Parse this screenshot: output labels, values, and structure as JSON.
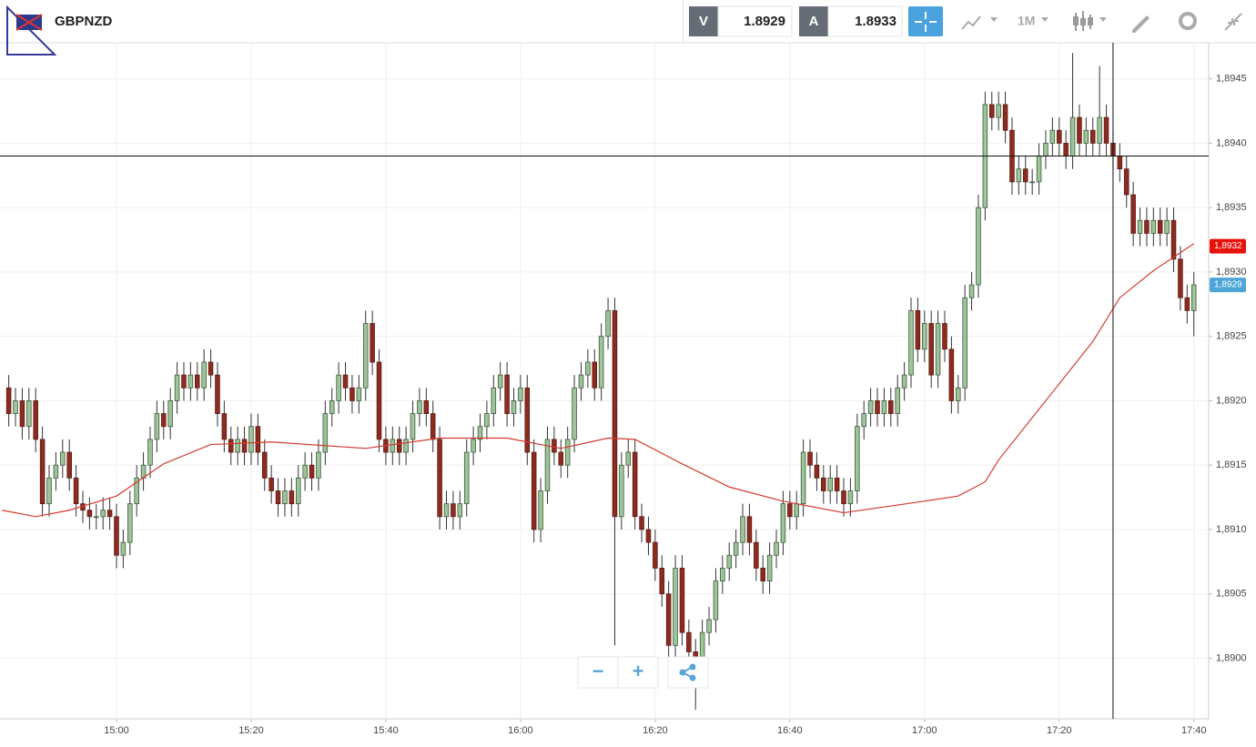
{
  "toolbar": {
    "symbol": "GBPNZD",
    "bid_label": "V",
    "bid": "1.8929",
    "ask_label": "A",
    "ask": "1.8933",
    "timeframe": "1M"
  },
  "controls": {
    "zoom_out": "−",
    "zoom_in": "+"
  },
  "chart_data": {
    "type": "candlestick",
    "x": [
      884,
      885,
      886,
      887,
      888,
      889,
      890,
      891,
      892,
      893,
      894,
      895,
      896,
      897,
      898,
      899,
      900,
      901,
      902,
      903,
      904,
      905,
      906,
      907,
      908,
      909,
      910,
      911,
      912,
      913,
      914,
      915,
      916,
      917,
      918,
      919,
      920,
      921,
      922,
      923,
      924,
      925,
      926,
      927,
      928,
      929,
      930,
      931,
      932,
      933,
      934,
      935,
      936,
      937,
      938,
      939,
      940,
      941,
      942,
      943,
      944,
      945,
      946,
      947,
      948,
      949,
      950,
      951,
      952,
      953,
      954,
      955,
      956,
      957,
      958,
      959,
      960,
      961,
      962,
      963,
      964,
      965,
      966,
      967,
      968,
      969,
      970,
      971,
      972,
      973,
      974,
      975,
      976,
      977,
      978,
      979,
      980,
      981,
      982,
      983,
      984,
      985,
      986,
      987,
      988,
      989,
      990,
      991,
      992,
      993,
      994,
      995,
      996,
      997,
      998,
      999,
      1000,
      1001,
      1002,
      1003,
      1004,
      1005,
      1006,
      1007,
      1008,
      1009,
      1010,
      1011,
      1012,
      1013,
      1014,
      1015,
      1016,
      1017,
      1018,
      1019,
      1020,
      1021,
      1022,
      1023,
      1024,
      1025,
      1026,
      1027,
      1028,
      1029,
      1030,
      1031,
      1032,
      1033,
      1034,
      1035,
      1036,
      1037,
      1038,
      1039,
      1040,
      1041,
      1042,
      1043,
      1044,
      1045,
      1046,
      1047,
      1048,
      1049,
      1050,
      1051,
      1052,
      1053,
      1054,
      1055,
      1056,
      1057,
      1058,
      1059,
      1060
    ],
    "open": [
      1.8921,
      1.8919,
      1.892,
      1.8918,
      1.892,
      1.8917,
      1.8912,
      1.8914,
      1.8915,
      1.8916,
      1.8914,
      1.8912,
      1.89115,
      1.8911,
      1.8911,
      1.89115,
      1.8911,
      1.8908,
      1.8909,
      1.8912,
      1.8914,
      1.8915,
      1.8917,
      1.8919,
      1.8918,
      1.892,
      1.8922,
      1.8921,
      1.8922,
      1.8921,
      1.8923,
      1.8922,
      1.8919,
      1.8917,
      1.8916,
      1.8917,
      1.8916,
      1.8918,
      1.8916,
      1.8914,
      1.8913,
      1.8912,
      1.8913,
      1.8912,
      1.8914,
      1.8915,
      1.8914,
      1.8916,
      1.8919,
      1.892,
      1.8922,
      1.8921,
      1.892,
      1.8921,
      1.8926,
      1.8923,
      1.8917,
      1.8916,
      1.8917,
      1.8916,
      1.8917,
      1.8919,
      1.892,
      1.8919,
      1.8917,
      1.8911,
      1.8912,
      1.8911,
      1.8912,
      1.8916,
      1.8917,
      1.8918,
      1.8919,
      1.8921,
      1.8922,
      1.8919,
      1.892,
      1.8921,
      1.8916,
      1.891,
      1.8913,
      1.8917,
      1.8916,
      1.8915,
      1.8917,
      1.8921,
      1.8922,
      1.8923,
      1.8921,
      1.8925,
      1.8927,
      1.8911,
      1.8915,
      1.8916,
      1.8911,
      1.891,
      1.8909,
      1.8907,
      1.8905,
      1.8901,
      1.8907,
      1.8902,
      1.89005,
      1.89,
      1.8902,
      1.8903,
      1.8906,
      1.8907,
      1.8908,
      1.8909,
      1.8911,
      1.8909,
      1.8907,
      1.8906,
      1.8908,
      1.8909,
      1.8912,
      1.8911,
      1.8912,
      1.8916,
      1.8915,
      1.8914,
      1.8913,
      1.8914,
      1.8913,
      1.8912,
      1.8913,
      1.8918,
      1.8919,
      1.892,
      1.8919,
      1.892,
      1.8919,
      1.8921,
      1.8922,
      1.8927,
      1.8924,
      1.8926,
      1.8922,
      1.8926,
      1.8924,
      1.892,
      1.8921,
      1.8928,
      1.8929,
      1.8935,
      1.8943,
      1.8942,
      1.8943,
      1.8941,
      1.8937,
      1.8938,
      1.8937,
      1.8937,
      1.8939,
      1.894,
      1.8941,
      1.894,
      1.8939,
      1.8942,
      1.894,
      1.8941,
      1.894,
      1.8942,
      1.894,
      1.8939,
      1.8938,
      1.8936,
      1.8933,
      1.8934,
      1.8933,
      1.8934,
      1.8933,
      1.8934,
      1.8931,
      1.8928,
      1.8927
    ],
    "high": [
      1.8922,
      1.8921,
      1.8921,
      1.8921,
      1.8921,
      1.8918,
      1.8915,
      1.8916,
      1.8917,
      1.8917,
      1.8915,
      1.8913,
      1.89125,
      1.8912,
      1.89125,
      1.89125,
      1.8912,
      1.891,
      1.8913,
      1.8915,
      1.8916,
      1.8918,
      1.892,
      1.892,
      1.8921,
      1.8923,
      1.8923,
      1.8923,
      1.8923,
      1.8924,
      1.8924,
      1.8923,
      1.892,
      1.8918,
      1.8918,
      1.8918,
      1.8919,
      1.8919,
      1.8917,
      1.8915,
      1.8914,
      1.8914,
      1.8914,
      1.8915,
      1.8916,
      1.8916,
      1.8917,
      1.892,
      1.8921,
      1.8923,
      1.8923,
      1.8922,
      1.8922,
      1.8927,
      1.8927,
      1.8924,
      1.8918,
      1.8918,
      1.8918,
      1.8918,
      1.892,
      1.8921,
      1.8921,
      1.892,
      1.8918,
      1.8913,
      1.8913,
      1.8913,
      1.8917,
      1.8918,
      1.8919,
      1.892,
      1.8922,
      1.8923,
      1.8923,
      1.8921,
      1.8922,
      1.8922,
      1.8917,
      1.8914,
      1.8918,
      1.8918,
      1.8917,
      1.8918,
      1.8922,
      1.8923,
      1.8924,
      1.8924,
      1.8926,
      1.8928,
      1.8928,
      1.8916,
      1.8917,
      1.8917,
      1.8912,
      1.8911,
      1.891,
      1.8908,
      1.8906,
      1.8908,
      1.8908,
      1.8903,
      1.89015,
      1.8903,
      1.8904,
      1.8907,
      1.8908,
      1.8909,
      1.891,
      1.8912,
      1.8912,
      1.891,
      1.8908,
      1.8909,
      1.891,
      1.8913,
      1.8913,
      1.8913,
      1.8917,
      1.8917,
      1.8916,
      1.8915,
      1.8915,
      1.8915,
      1.8914,
      1.8914,
      1.8919,
      1.892,
      1.8921,
      1.8921,
      1.8921,
      1.8921,
      1.8922,
      1.8923,
      1.8928,
      1.8928,
      1.8927,
      1.8927,
      1.8927,
      1.8927,
      1.8925,
      1.8922,
      1.8929,
      1.893,
      1.8936,
      1.8944,
      1.8944,
      1.8944,
      1.8944,
      1.8942,
      1.8939,
      1.8939,
      1.8938,
      1.894,
      1.8941,
      1.8942,
      1.8942,
      1.8941,
      1.8947,
      1.8943,
      1.8942,
      1.8942,
      1.8946,
      1.8943,
      1.8941,
      1.894,
      1.8939,
      1.8937,
      1.8935,
      1.8935,
      1.8935,
      1.8935,
      1.8935,
      1.8935,
      1.8932,
      1.8929,
      1.893
    ],
    "low": [
      1.8918,
      1.8918,
      1.8917,
      1.8917,
      1.8916,
      1.8911,
      1.8911,
      1.8913,
      1.8914,
      1.8913,
      1.8911,
      1.89105,
      1.891,
      1.891,
      1.891,
      1.891,
      1.8907,
      1.8907,
      1.8908,
      1.8911,
      1.8913,
      1.8914,
      1.8916,
      1.8917,
      1.8917,
      1.8919,
      1.892,
      1.892,
      1.892,
      1.892,
      1.8921,
      1.8918,
      1.8916,
      1.8915,
      1.8915,
      1.8915,
      1.8915,
      1.8915,
      1.8913,
      1.8912,
      1.8911,
      1.8911,
      1.8911,
      1.8911,
      1.8913,
      1.8913,
      1.8913,
      1.8915,
      1.8918,
      1.8919,
      1.892,
      1.8919,
      1.8919,
      1.892,
      1.8922,
      1.8916,
      1.8915,
      1.8915,
      1.8915,
      1.8915,
      1.8916,
      1.8918,
      1.8918,
      1.8916,
      1.891,
      1.891,
      1.891,
      1.891,
      1.8911,
      1.8915,
      1.8916,
      1.8917,
      1.8918,
      1.892,
      1.8918,
      1.8918,
      1.8919,
      1.8915,
      1.8909,
      1.8909,
      1.8912,
      1.8915,
      1.8914,
      1.8914,
      1.8916,
      1.892,
      1.8921,
      1.892,
      1.892,
      1.8924,
      1.8901,
      1.891,
      1.8914,
      1.891,
      1.8909,
      1.8908,
      1.8906,
      1.8904,
      1.89,
      1.89,
      1.8901,
      1.88995,
      1.8896,
      1.8899,
      1.8901,
      1.8902,
      1.8905,
      1.8906,
      1.8907,
      1.8908,
      1.8908,
      1.8906,
      1.8905,
      1.8905,
      1.8907,
      1.8908,
      1.891,
      1.891,
      1.8911,
      1.8914,
      1.8913,
      1.8912,
      1.8912,
      1.8912,
      1.8911,
      1.8911,
      1.8912,
      1.8917,
      1.8918,
      1.8918,
      1.8918,
      1.8918,
      1.8918,
      1.892,
      1.8921,
      1.8923,
      1.8923,
      1.8921,
      1.8921,
      1.8923,
      1.8919,
      1.8919,
      1.892,
      1.8927,
      1.8928,
      1.8934,
      1.8941,
      1.8941,
      1.894,
      1.8936,
      1.8936,
      1.8936,
      1.8936,
      1.8936,
      1.8938,
      1.8939,
      1.8939,
      1.8938,
      1.8938,
      1.8939,
      1.8939,
      1.8939,
      1.8939,
      1.8939,
      1.8938,
      1.8937,
      1.8935,
      1.8932,
      1.8932,
      1.8932,
      1.8932,
      1.8932,
      1.8932,
      1.893,
      1.8927,
      1.8926,
      1.8925
    ],
    "close": [
      1.8919,
      1.892,
      1.8918,
      1.892,
      1.8917,
      1.8912,
      1.8914,
      1.8915,
      1.8916,
      1.8914,
      1.8912,
      1.89115,
      1.8911,
      1.8911,
      1.89115,
      1.8911,
      1.8908,
      1.8909,
      1.8912,
      1.8914,
      1.8915,
      1.8917,
      1.8919,
      1.8918,
      1.892,
      1.8922,
      1.8921,
      1.8922,
      1.8921,
      1.8923,
      1.8922,
      1.8919,
      1.8917,
      1.8916,
      1.8917,
      1.8916,
      1.8918,
      1.8916,
      1.8914,
      1.8913,
      1.8912,
      1.8913,
      1.8912,
      1.8914,
      1.8915,
      1.8914,
      1.8916,
      1.8919,
      1.892,
      1.8922,
      1.8921,
      1.892,
      1.8921,
      1.8926,
      1.8923,
      1.8917,
      1.8916,
      1.8917,
      1.8916,
      1.8917,
      1.8919,
      1.892,
      1.8919,
      1.8917,
      1.8911,
      1.8912,
      1.8911,
      1.8912,
      1.8916,
      1.8917,
      1.8918,
      1.8919,
      1.8921,
      1.8922,
      1.8919,
      1.892,
      1.8921,
      1.8916,
      1.891,
      1.8913,
      1.8917,
      1.8916,
      1.8915,
      1.8917,
      1.8921,
      1.8922,
      1.8923,
      1.8921,
      1.8925,
      1.8927,
      1.8911,
      1.8915,
      1.8916,
      1.8911,
      1.891,
      1.8909,
      1.8907,
      1.8905,
      1.8901,
      1.8907,
      1.8902,
      1.89005,
      1.89,
      1.8902,
      1.8903,
      1.8906,
      1.8907,
      1.8908,
      1.8909,
      1.8911,
      1.8909,
      1.8907,
      1.8906,
      1.8908,
      1.8909,
      1.8912,
      1.8911,
      1.8912,
      1.8916,
      1.8915,
      1.8914,
      1.8913,
      1.8914,
      1.8913,
      1.8912,
      1.8913,
      1.8918,
      1.8919,
      1.892,
      1.8919,
      1.892,
      1.8919,
      1.8921,
      1.8922,
      1.8927,
      1.8924,
      1.8926,
      1.8922,
      1.8926,
      1.8924,
      1.892,
      1.8921,
      1.8928,
      1.8929,
      1.8935,
      1.8943,
      1.8942,
      1.8943,
      1.8941,
      1.8937,
      1.8938,
      1.8937,
      1.8937,
      1.8939,
      1.894,
      1.8941,
      1.894,
      1.8939,
      1.8942,
      1.894,
      1.8941,
      1.894,
      1.8942,
      1.894,
      1.8939,
      1.8938,
      1.8936,
      1.8933,
      1.8934,
      1.8933,
      1.8934,
      1.8933,
      1.8934,
      1.8931,
      1.8928,
      1.8927,
      1.8929
    ],
    "up_color": "#9dc49a",
    "down_color": "#8e2b20",
    "overlay": {
      "color": "#d23b30",
      "x": [
        883,
        888,
        893,
        900,
        907,
        914,
        923,
        937,
        948,
        958,
        966,
        973,
        977,
        984,
        991,
        999,
        1008,
        1020,
        1025,
        1029,
        1031,
        1038,
        1045,
        1049,
        1054,
        1060
      ],
      "values": [
        1.89115,
        1.8911,
        1.89115,
        1.89126,
        1.89151,
        1.89166,
        1.89168,
        1.89163,
        1.89171,
        1.89171,
        1.89163,
        1.89171,
        1.8917,
        1.89151,
        1.89133,
        1.89122,
        1.89113,
        1.89122,
        1.89126,
        1.89137,
        1.89154,
        1.892,
        1.89246,
        1.8928,
        1.89301,
        1.89322
      ]
    },
    "price_labels": [
      {
        "value": 1.8932,
        "label": "1,8932",
        "color": "#e8120c"
      },
      {
        "value": 1.8929,
        "label": "1,8929",
        "color": "#4ea6d8"
      }
    ],
    "crosshair": {
      "x": 1048,
      "y": 1.8939
    },
    "xlim": [
      882.7,
      1062.2
    ],
    "xticks": [
      {
        "value": 900,
        "label": "15:00"
      },
      {
        "value": 920,
        "label": "15:20"
      },
      {
        "value": 940,
        "label": "15:40"
      },
      {
        "value": 960,
        "label": "16:00"
      },
      {
        "value": 980,
        "label": "16:20"
      },
      {
        "value": 1000,
        "label": "16:40"
      },
      {
        "value": 1020,
        "label": "17:00"
      },
      {
        "value": 1040,
        "label": "17:20"
      },
      {
        "value": 1060,
        "label": "17:40"
      }
    ],
    "ylim": [
      1.88953,
      1.89478
    ],
    "yticks": [
      {
        "value": 1.89,
        "label": "1,8900"
      },
      {
        "value": 1.8905,
        "label": "1,8905"
      },
      {
        "value": 1.891,
        "label": "1,8910"
      },
      {
        "value": 1.8915,
        "label": "1,8915"
      },
      {
        "value": 1.892,
        "label": "1,8920"
      },
      {
        "value": 1.8925,
        "label": "1,8925"
      },
      {
        "value": 1.893,
        "label": "1,8930"
      },
      {
        "value": 1.8935,
        "label": "1,8935"
      },
      {
        "value": 1.894,
        "label": "1,8940"
      },
      {
        "value": 1.8945,
        "label": "1,8945"
      }
    ],
    "grid": true
  }
}
